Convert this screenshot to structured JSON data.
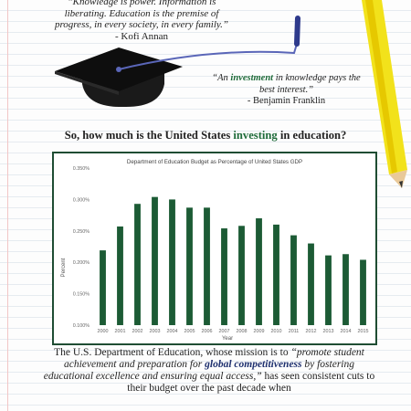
{
  "quote1": {
    "text": "“Knowledge is power. Information is liberating. Education is the premise of progress, in every society, in every family.”",
    "author": "- Kofi Annan"
  },
  "quote2": {
    "pre": "“An ",
    "emphasis": "investment",
    "post": " in knowledge pays the best interest.”",
    "author": "- Benjamin Franklin"
  },
  "question": {
    "pre": "So, how much is the United States ",
    "emphasis": "investing",
    "post": " in education?"
  },
  "colors": {
    "accent_green": "#1f6b3a",
    "bar_green": "#1c5b35",
    "frame_green": "#1f4d33",
    "navy": "#1d2f6e",
    "pencil_yellow": "#f2e21b"
  },
  "chart_data": {
    "type": "bar",
    "title": "Department of Education Budget as Percentage of United States GDP",
    "xlabel": "Year",
    "ylabel": "Percent",
    "ylim": [
      0.1,
      0.35
    ],
    "yticks": [
      "0.100%",
      "0.150%",
      "0.200%",
      "0.250%",
      "0.300%",
      "0.350%"
    ],
    "categories": [
      "2000",
      "2001",
      "2002",
      "2003",
      "2004",
      "2005",
      "2006",
      "2007",
      "2008",
      "2009",
      "2010",
      "2011",
      "2012",
      "2013",
      "2014",
      "2015"
    ],
    "values": [
      0.219,
      0.257,
      0.293,
      0.304,
      0.3,
      0.287,
      0.287,
      0.254,
      0.258,
      0.27,
      0.26,
      0.243,
      0.23,
      0.211,
      0.213,
      0.204
    ],
    "grid": false
  },
  "paragraph": {
    "p1": "The U.S. Department of Education, whose mission is to ",
    "p2": "“promote student achievement and preparation for ",
    "p3": "global competitiveness",
    "p4": " by fostering educational excellence and ensuring equal access,”",
    "p5": " has seen consistent cuts to their budget over the past decade when"
  }
}
